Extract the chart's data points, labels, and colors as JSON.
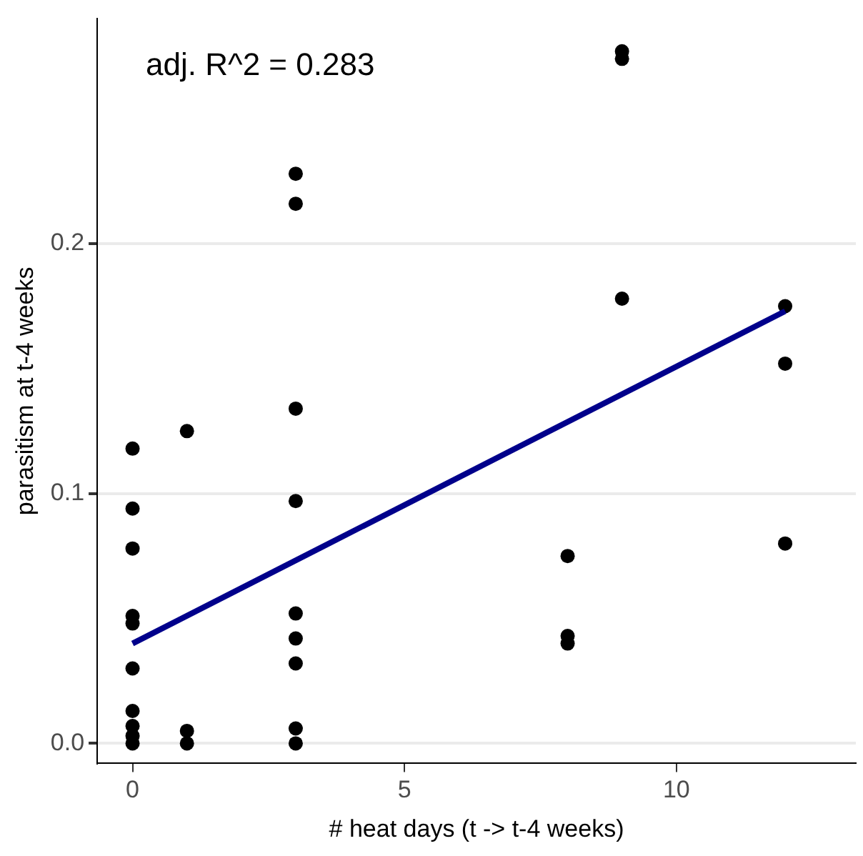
{
  "chart_data": {
    "type": "scatter",
    "xlabel": "# heat days (t -> t-4 weeks)",
    "ylabel": "parasitism at t-4 weeks",
    "annotations": [
      "adj. R^2 = 0.283"
    ],
    "series": [
      {
        "color": "#000000",
        "x": [
          0,
          0,
          0,
          0,
          0,
          0,
          0,
          0,
          0,
          0,
          1,
          1,
          1,
          3,
          3,
          3,
          3,
          3,
          3,
          3,
          3,
          3,
          8,
          8,
          8,
          9,
          9,
          9,
          12,
          12,
          12
        ],
        "values": [
          0.118,
          0.094,
          0.078,
          0.051,
          0.048,
          0.03,
          0.013,
          0.007,
          0.003,
          0,
          0.125,
          0.005,
          0,
          0.228,
          0.216,
          0.134,
          0.097,
          0.052,
          0.042,
          0.032,
          0.006,
          0,
          0.075,
          0.043,
          0.04,
          0.277,
          0.274,
          0.178,
          0.175,
          0.152,
          0.08
        ]
      },
      {
        "type": "line",
        "marker": "none",
        "color": "#00008b",
        "x": [
          0,
          12
        ],
        "values": [
          0.04,
          0.173
        ]
      }
    ],
    "xlim": [
      -0.65,
      13.3
    ],
    "xticks": [
      0,
      5,
      10
    ],
    "ylim": [
      -0.008,
      0.29
    ],
    "yticks": [
      {
        "value": 0,
        "label": "0.0"
      },
      {
        "value": 0.1,
        "label": "0.1"
      },
      {
        "value": 0.2,
        "label": "0.2"
      }
    ],
    "grid": "y",
    "marker": "circle",
    "legend": false
  }
}
